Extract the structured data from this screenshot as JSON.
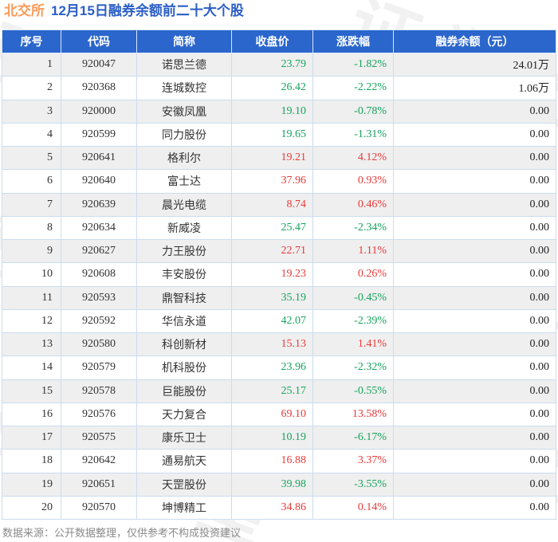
{
  "header": {
    "tag": "北交所",
    "title": "12月15日融券余额前二十大个股"
  },
  "watermark": {
    "text": "证券之星"
  },
  "footer": {
    "note": "数据来源：公开数据整理，仅供参考不构成投资建议"
  },
  "colors": {
    "header_bg": "#2a66cc",
    "title_blue": "#2b5ec5",
    "tag_orange": "#f89b5a",
    "up_red": "#e93a3a",
    "down_green": "#18a35d",
    "row_alt": "#efefef",
    "border": "#cbdcef",
    "footer_gray": "#8a8a8a"
  },
  "chart_data": {
    "type": "table",
    "title": "北交所 12月15日融券余额前二十大个股",
    "columns": [
      "序号",
      "代码",
      "简称",
      "收盘价",
      "涨跌幅",
      "融券余额（元）"
    ],
    "rows": [
      [
        "1",
        "920047",
        "诺思兰德",
        "23.79",
        "-1.82%",
        "24.01万"
      ],
      [
        "2",
        "920368",
        "连城数控",
        "26.42",
        "-2.22%",
        "1.06万"
      ],
      [
        "3",
        "920000",
        "安徽凤凰",
        "19.10",
        "-0.78%",
        "0.00"
      ],
      [
        "4",
        "920599",
        "同力股份",
        "19.65",
        "-1.31%",
        "0.00"
      ],
      [
        "5",
        "920641",
        "格利尔",
        "19.21",
        "4.12%",
        "0.00"
      ],
      [
        "6",
        "920640",
        "富士达",
        "37.96",
        "0.93%",
        "0.00"
      ],
      [
        "7",
        "920639",
        "晨光电缆",
        "8.74",
        "0.46%",
        "0.00"
      ],
      [
        "8",
        "920634",
        "新威凌",
        "25.47",
        "-2.34%",
        "0.00"
      ],
      [
        "9",
        "920627",
        "力王股份",
        "22.71",
        "1.11%",
        "0.00"
      ],
      [
        "10",
        "920608",
        "丰安股份",
        "19.23",
        "0.26%",
        "0.00"
      ],
      [
        "11",
        "920593",
        "鼎智科技",
        "35.19",
        "-0.45%",
        "0.00"
      ],
      [
        "12",
        "920592",
        "华信永道",
        "42.07",
        "-2.39%",
        "0.00"
      ],
      [
        "13",
        "920580",
        "科创新材",
        "15.13",
        "1.41%",
        "0.00"
      ],
      [
        "14",
        "920579",
        "机科股份",
        "23.96",
        "-2.32%",
        "0.00"
      ],
      [
        "15",
        "920578",
        "巨能股份",
        "25.17",
        "-0.55%",
        "0.00"
      ],
      [
        "16",
        "920576",
        "天力复合",
        "69.10",
        "13.58%",
        "0.00"
      ],
      [
        "17",
        "920575",
        "康乐卫士",
        "10.19",
        "-6.17%",
        "0.00"
      ],
      [
        "18",
        "920642",
        "通易航天",
        "16.88",
        "3.37%",
        "0.00"
      ],
      [
        "19",
        "920651",
        "天罡股份",
        "39.98",
        "-3.55%",
        "0.00"
      ],
      [
        "20",
        "920570",
        "坤博精工",
        "34.86",
        "0.14%",
        "0.00"
      ]
    ]
  }
}
